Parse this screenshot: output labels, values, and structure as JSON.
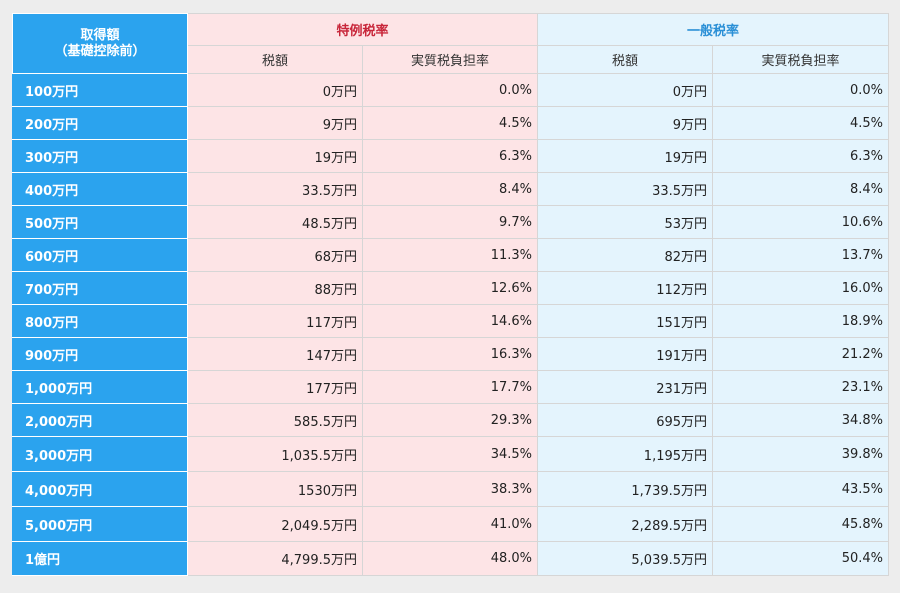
{
  "header": {
    "corner_line1": "取得額",
    "corner_line2": "（基礎控除前）",
    "group_special": "特例税率",
    "group_general": "一般税率",
    "col_tax": "税額",
    "col_rate": "実質税負担率"
  },
  "colors": {
    "label_bg": "#2ba3ee",
    "special_bg": "#fde4e6",
    "special_title": "#c8263a",
    "general_bg": "#e4f4fd",
    "general_title": "#2a8fd6"
  },
  "rows": [
    {
      "label": "100万円",
      "special_tax": "0万円",
      "special_rate": "0.0%",
      "general_tax": "0万円",
      "general_rate": "0.0%"
    },
    {
      "label": "200万円",
      "special_tax": "9万円",
      "special_rate": "4.5%",
      "general_tax": "9万円",
      "general_rate": "4.5%"
    },
    {
      "label": "300万円",
      "special_tax": "19万円",
      "special_rate": "6.3%",
      "general_tax": "19万円",
      "general_rate": "6.3%"
    },
    {
      "label": "400万円",
      "special_tax": "33.5万円",
      "special_rate": "8.4%",
      "general_tax": "33.5万円",
      "general_rate": "8.4%"
    },
    {
      "label": "500万円",
      "special_tax": "48.5万円",
      "special_rate": "9.7%",
      "general_tax": "53万円",
      "general_rate": "10.6%"
    },
    {
      "label": "600万円",
      "special_tax": "68万円",
      "special_rate": "11.3%",
      "general_tax": "82万円",
      "general_rate": "13.7%"
    },
    {
      "label": "700万円",
      "special_tax": "88万円",
      "special_rate": "12.6%",
      "general_tax": "112万円",
      "general_rate": "16.0%"
    },
    {
      "label": "800万円",
      "special_tax": "117万円",
      "special_rate": "14.6%",
      "general_tax": "151万円",
      "general_rate": "18.9%"
    },
    {
      "label": "900万円",
      "special_tax": "147万円",
      "special_rate": "16.3%",
      "general_tax": "191万円",
      "general_rate": "21.2%"
    },
    {
      "label": "1,000万円",
      "special_tax": "177万円",
      "special_rate": "17.7%",
      "general_tax": "231万円",
      "general_rate": "23.1%"
    },
    {
      "label": "2,000万円",
      "special_tax": "585.5万円",
      "special_rate": "29.3%",
      "general_tax": "695万円",
      "general_rate": "34.8%"
    },
    {
      "label": "3,000万円",
      "special_tax": "1,035.5万円",
      "special_rate": "34.5%",
      "general_tax": "1,195万円",
      "general_rate": "39.8%"
    },
    {
      "label": "4,000万円",
      "special_tax": "1530万円",
      "special_rate": "38.3%",
      "general_tax": "1,739.5万円",
      "general_rate": "43.5%"
    },
    {
      "label": "5,000万円",
      "special_tax": "2,049.5万円",
      "special_rate": "41.0%",
      "general_tax": "2,289.5万円",
      "general_rate": "45.8%"
    },
    {
      "label": "1億円",
      "special_tax": "4,799.5万円",
      "special_rate": "48.0%",
      "general_tax": "5,039.5万円",
      "general_rate": "50.4%"
    }
  ]
}
